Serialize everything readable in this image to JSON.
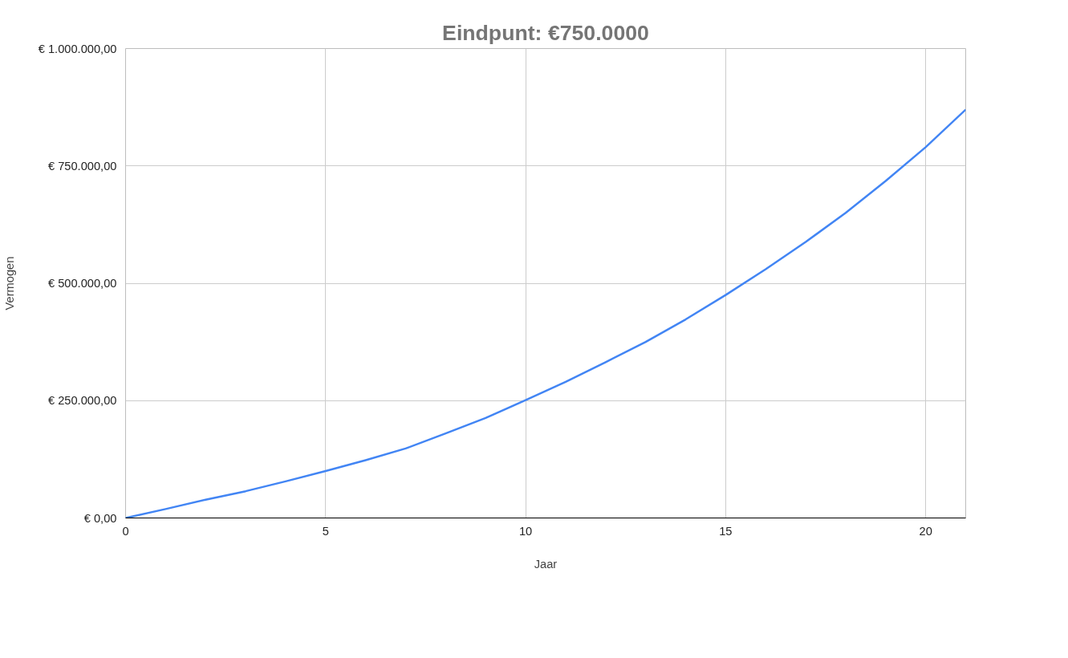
{
  "chart_data": {
    "type": "line",
    "title": "Eindpunt: €750.0000",
    "xlabel": "Jaar",
    "ylabel": "Vermogen",
    "x": [
      0,
      1,
      2,
      3,
      4,
      5,
      6,
      7,
      8,
      9,
      10,
      11,
      12,
      13,
      14,
      15,
      16,
      17,
      18,
      19,
      20,
      21
    ],
    "series": [
      {
        "color": "#4285f4",
        "values": [
          0,
          19000,
          39000,
          57000,
          78000,
          100000,
          123000,
          148000,
          180000,
          213000,
          251000,
          290000,
          332000,
          375000,
          423000,
          475000,
          530000,
          588000,
          650000,
          718000,
          790000,
          870000
        ]
      }
    ],
    "xlim": [
      0,
      21
    ],
    "xticks": [
      0,
      5,
      10,
      15,
      20
    ],
    "ylim": [
      0,
      1000000
    ],
    "yticks": [
      {
        "value": 0,
        "label": "€ 0,00"
      },
      {
        "value": 250000,
        "label": "€ 250.000,00"
      },
      {
        "value": 500000,
        "label": "€ 500.000,00"
      },
      {
        "value": 750000,
        "label": "€ 750.000,00"
      },
      {
        "value": 1000000,
        "label": "€ 1.000.000,00"
      }
    ],
    "grid": true,
    "marker": "none",
    "line_style": "solid"
  }
}
